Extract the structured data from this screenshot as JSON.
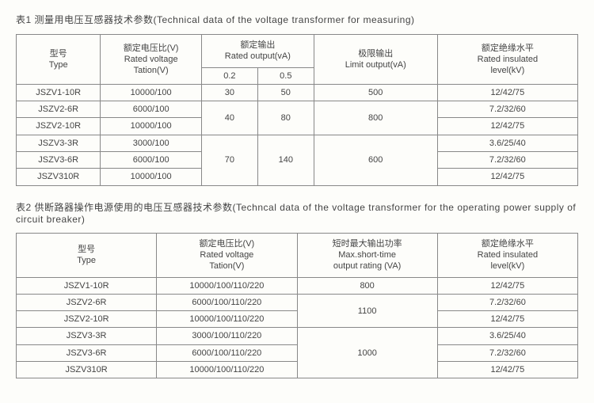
{
  "title1": "表1 测量用电压互感器技术参数(Technical data of the voltage transformer for measuring)",
  "title2": "表2 供断路器操作电源使用的电压互感器技术参数(Techncal data of the voltage transformer for the operating power supply of circuit breaker)",
  "t1": {
    "h_type": "型号\nType",
    "h_rv": "额定电压比(V)\nRated voltage\nTation(V)",
    "h_ro": "额定输出\nRated output(vA)",
    "h_ro02": "0.2",
    "h_ro05": "0.5",
    "h_limit": "极限输出\nLimit output(vA)",
    "h_level": "额定绝缘水平\nRated insulated\nlevel(kV)",
    "rows": [
      {
        "type": "JSZV1-10R",
        "rv": "10000/100",
        "level": "12/42/75"
      },
      {
        "type": "JSZV2-6R",
        "rv": "6000/100",
        "level": "7.2/32/60"
      },
      {
        "type": "JSZV2-10R",
        "rv": "10000/100",
        "level": "12/42/75"
      },
      {
        "type": "JSZV3-3R",
        "rv": "3000/100",
        "level": "3.6/25/40"
      },
      {
        "type": "JSZV3-6R",
        "rv": "6000/100",
        "level": "7.2/32/60"
      },
      {
        "type": "JSZV310R",
        "rv": "10000/100",
        "level": "12/42/75"
      }
    ],
    "ro_grp": [
      {
        "v02": "30",
        "v05": "50",
        "limit": "500"
      },
      {
        "v02": "40",
        "v05": "80",
        "limit": "800"
      },
      {
        "v02": "70",
        "v05": "140",
        "limit": "600"
      }
    ]
  },
  "t2": {
    "h_type": "型号\nType",
    "h_rv": "额定电压比(V)\nRated voltage\nTation(V)",
    "h_max": "短时最大输出功率\nMax.short-time\noutput rating (VA)",
    "h_level": "额定绝缘水平\nRated insulated\nlevel(kV)",
    "rows": [
      {
        "type": "JSZV1-10R",
        "rv": "10000/100/110/220",
        "level": "12/42/75"
      },
      {
        "type": "JSZV2-6R",
        "rv": "6000/100/110/220",
        "level": "7.2/32/60"
      },
      {
        "type": "JSZV2-10R",
        "rv": "10000/100/110/220",
        "level": "12/42/75"
      },
      {
        "type": "JSZV3-3R",
        "rv": "3000/100/110/220",
        "level": "3.6/25/40"
      },
      {
        "type": "JSZV3-6R",
        "rv": "6000/100/110/220",
        "level": "7.2/32/60"
      },
      {
        "type": "JSZV310R",
        "rv": "10000/100/110/220",
        "level": "12/42/75"
      }
    ],
    "max_grp": [
      "800",
      "1100",
      "1000"
    ]
  }
}
